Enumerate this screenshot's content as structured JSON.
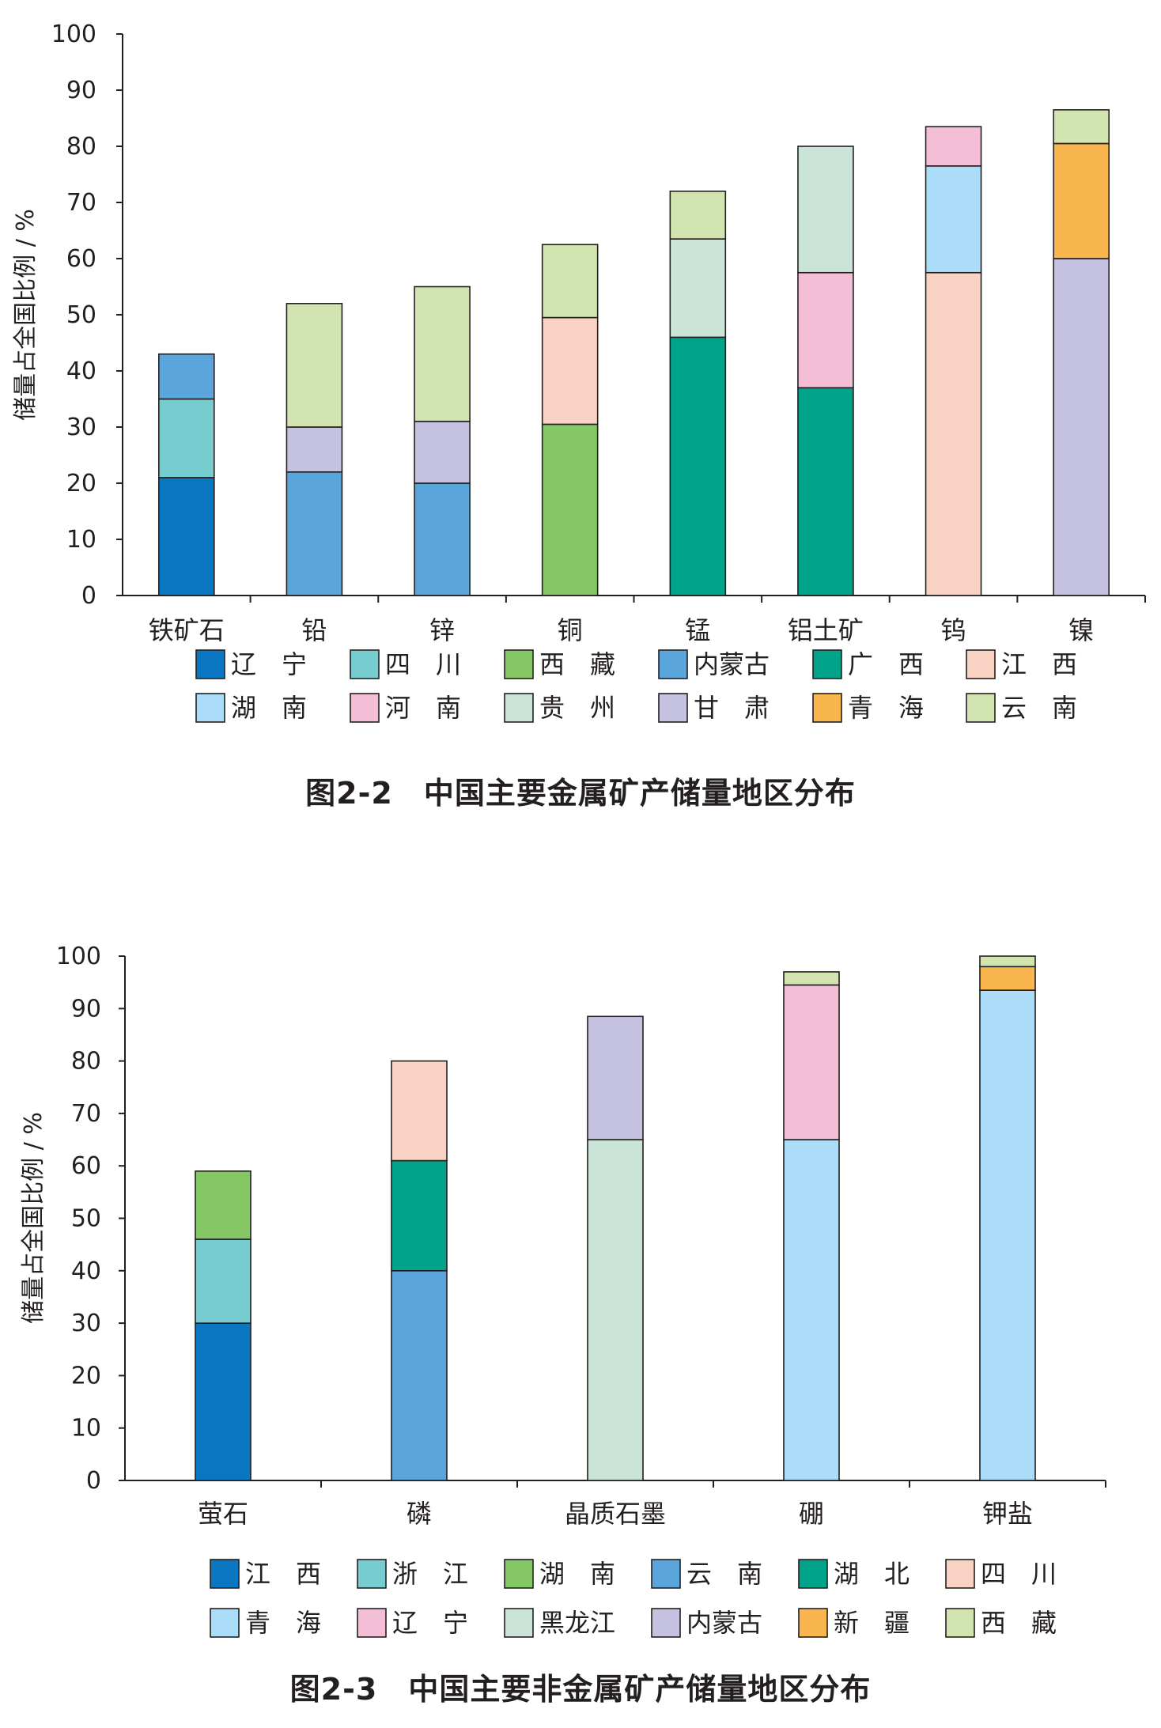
{
  "chart_data": [
    {
      "type": "bar",
      "stacked": true,
      "title": "图2-2　中国主要金属矿产储量地区分布",
      "ylabel": "储量占全国比例 / %",
      "ylim": [
        0,
        100
      ],
      "yticks": [
        0,
        10,
        20,
        30,
        40,
        50,
        60,
        70,
        80,
        90,
        100
      ],
      "grid": false,
      "legend_position": "bottom",
      "categories": [
        "铁矿石",
        "铅",
        "锌",
        "铜",
        "锰",
        "铝土矿",
        "钨",
        "镍"
      ],
      "legend": [
        {
          "name": "辽　宁",
          "color": "#0b76c1"
        },
        {
          "name": "四　川",
          "color": "#77ccd0"
        },
        {
          "name": "西　藏",
          "color": "#85c765"
        },
        {
          "name": "内蒙古",
          "color": "#5aa6dc"
        },
        {
          "name": "广　西",
          "color": "#01a38b"
        },
        {
          "name": "江　西",
          "color": "#f8d2c2"
        },
        {
          "name": "湖　南",
          "color": "#abdcf8"
        },
        {
          "name": "河　南",
          "color": "#f4bfd6"
        },
        {
          "name": "贵　州",
          "color": "#cae5d7"
        },
        {
          "name": "甘　肃",
          "color": "#c5c1e0"
        },
        {
          "name": "青　海",
          "color": "#f9b54e"
        },
        {
          "name": "云　南",
          "color": "#d2e4b0"
        }
      ],
      "bars": [
        {
          "category": "铁矿石",
          "segments": [
            {
              "region": "辽　宁",
              "value": 21
            },
            {
              "region": "四　川",
              "value": 14
            },
            {
              "region": "内蒙古",
              "value": 8
            }
          ]
        },
        {
          "category": "铅",
          "segments": [
            {
              "region": "内蒙古",
              "value": 22
            },
            {
              "region": "甘　肃",
              "value": 8
            },
            {
              "region": "云　南",
              "value": 22
            }
          ]
        },
        {
          "category": "锌",
          "segments": [
            {
              "region": "内蒙古",
              "value": 20
            },
            {
              "region": "甘　肃",
              "value": 11
            },
            {
              "region": "云　南",
              "value": 24
            }
          ]
        },
        {
          "category": "铜",
          "segments": [
            {
              "region": "西　藏",
              "value": 30.5
            },
            {
              "region": "江　西",
              "value": 19
            },
            {
              "region": "云　南",
              "value": 13
            }
          ]
        },
        {
          "category": "锰",
          "segments": [
            {
              "region": "广　西",
              "value": 46
            },
            {
              "region": "贵　州",
              "value": 17.5
            },
            {
              "region": "云　南",
              "value": 8.5
            }
          ]
        },
        {
          "category": "铝土矿",
          "segments": [
            {
              "region": "广　西",
              "value": 37
            },
            {
              "region": "河　南",
              "value": 20.5
            },
            {
              "region": "贵　州",
              "value": 22.5
            }
          ]
        },
        {
          "category": "钨",
          "segments": [
            {
              "region": "江　西",
              "value": 57.5
            },
            {
              "region": "湖　南",
              "value": 19
            },
            {
              "region": "河　南",
              "value": 7
            }
          ]
        },
        {
          "category": "镍",
          "segments": [
            {
              "region": "甘　肃",
              "value": 60
            },
            {
              "region": "青　海",
              "value": 20.5
            },
            {
              "region": "云　南",
              "value": 6
            }
          ]
        }
      ]
    },
    {
      "type": "bar",
      "stacked": true,
      "title": "图2-3　中国主要非金属矿产储量地区分布",
      "ylabel": "储量占全国比例 / %",
      "ylim": [
        0,
        100
      ],
      "yticks": [
        0,
        10,
        20,
        30,
        40,
        50,
        60,
        70,
        80,
        90,
        100
      ],
      "grid": false,
      "legend_position": "bottom",
      "categories": [
        "萤石",
        "磷",
        "晶质石墨",
        "硼",
        "钾盐"
      ],
      "legend": [
        {
          "name": "江　西",
          "color": "#0b76c1"
        },
        {
          "name": "浙　江",
          "color": "#77ccd0"
        },
        {
          "name": "湖　南",
          "color": "#85c765"
        },
        {
          "name": "云　南",
          "color": "#5aa6dc"
        },
        {
          "name": "湖　北",
          "color": "#01a38b"
        },
        {
          "name": "四　川",
          "color": "#f8d2c2"
        },
        {
          "name": "青　海",
          "color": "#abdcf8"
        },
        {
          "name": "辽　宁",
          "color": "#f4bfd6"
        },
        {
          "name": "黑龙江",
          "color": "#cae5d7"
        },
        {
          "name": "内蒙古",
          "color": "#c5c1e0"
        },
        {
          "name": "新　疆",
          "color": "#f9b54e"
        },
        {
          "name": "西　藏",
          "color": "#d2e4b0"
        }
      ],
      "bars": [
        {
          "category": "萤石",
          "segments": [
            {
              "region": "江　西",
              "value": 30
            },
            {
              "region": "浙　江",
              "value": 16
            },
            {
              "region": "湖　南",
              "value": 13
            }
          ]
        },
        {
          "category": "磷",
          "segments": [
            {
              "region": "云　南",
              "value": 40
            },
            {
              "region": "湖　北",
              "value": 21
            },
            {
              "region": "四　川",
              "value": 19
            }
          ]
        },
        {
          "category": "晶质石墨",
          "segments": [
            {
              "region": "黑龙江",
              "value": 65
            },
            {
              "region": "内蒙古",
              "value": 23.5
            }
          ]
        },
        {
          "category": "硼",
          "segments": [
            {
              "region": "青　海",
              "value": 65
            },
            {
              "region": "辽　宁",
              "value": 29.5
            },
            {
              "region": "西　藏",
              "value": 2.5
            }
          ]
        },
        {
          "category": "钾盐",
          "segments": [
            {
              "region": "青　海",
              "value": 93.5
            },
            {
              "region": "新　疆",
              "value": 4.5
            },
            {
              "region": "西　藏",
              "value": 2
            }
          ]
        }
      ]
    }
  ]
}
